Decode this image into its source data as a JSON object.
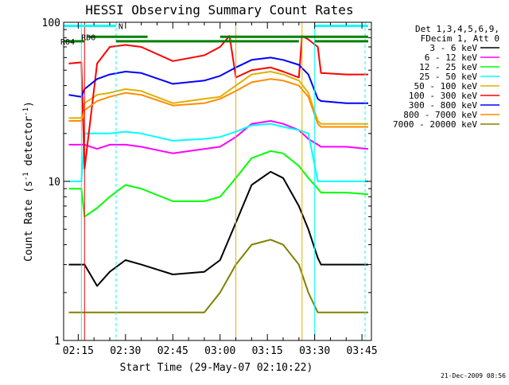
{
  "chart_data": {
    "type": "line",
    "title": "HESSI Observing Summary Count Rates",
    "xlabel": "Start Time (29-May-07 02:10:22)",
    "ylabel": "Count Rate (s",
    "ylabel_sup": "-1",
    "ylabel_tail": " detector",
    "ylabel_close": ")",
    "y_scale": "log",
    "ylim": [
      1,
      100
    ],
    "xlim": [
      "02:10:22",
      "03:48:00"
    ],
    "x_ticks": [
      "02:15",
      "02:30",
      "02:45",
      "03:00",
      "03:15",
      "03:30",
      "03:45"
    ],
    "y_ticks": [
      {
        "value": 1,
        "label": "1"
      },
      {
        "value": 10,
        "label": "10"
      },
      {
        "value": 100,
        "label": "100"
      }
    ],
    "y_minor_ticks": [
      2,
      3,
      4,
      5,
      6,
      7,
      8,
      9,
      20,
      30,
      40,
      50,
      60,
      70,
      80,
      90
    ],
    "legend_header": [
      "Det 1,3,4,5,6,9,",
      "FDecim 1, Att 0"
    ],
    "legend_position": "right",
    "timestamp": "21-Dec-2009 08:56",
    "series": [
      {
        "name": "3 - 6 keV",
        "color": "#000000",
        "points": [
          [
            "02:12",
            3.0
          ],
          [
            "02:16",
            3.0
          ],
          [
            "02:17",
            3.0
          ],
          [
            "02:21",
            2.2
          ],
          [
            "02:25",
            2.7
          ],
          [
            "02:30",
            3.2
          ],
          [
            "02:35",
            3.0
          ],
          [
            "02:45",
            2.6
          ],
          [
            "02:55",
            2.7
          ],
          [
            "03:00",
            3.2
          ],
          [
            "03:05",
            5.5
          ],
          [
            "03:10",
            9.5
          ],
          [
            "03:16",
            11.5
          ],
          [
            "03:20",
            10.5
          ],
          [
            "03:25",
            7.0
          ],
          [
            "03:28",
            5.0
          ],
          [
            "03:31",
            3.3
          ],
          [
            "03:32",
            3.0
          ],
          [
            "03:40",
            3.0
          ],
          [
            "03:47",
            3.0
          ]
        ]
      },
      {
        "name": "6 - 12 keV",
        "color": "#ff00ff",
        "points": [
          [
            "02:12",
            17.0
          ],
          [
            "02:16",
            17.0
          ],
          [
            "02:17",
            17.0
          ],
          [
            "02:21",
            16.0
          ],
          [
            "02:25",
            17.0
          ],
          [
            "02:30",
            17.0
          ],
          [
            "02:35",
            16.5
          ],
          [
            "02:45",
            15.0
          ],
          [
            "02:55",
            16.0
          ],
          [
            "03:00",
            16.5
          ],
          [
            "03:05",
            19.0
          ],
          [
            "03:10",
            23.0
          ],
          [
            "03:16",
            24.0
          ],
          [
            "03:20",
            23.0
          ],
          [
            "03:25",
            21.0
          ],
          [
            "03:28",
            18.5
          ],
          [
            "03:31",
            17.0
          ],
          [
            "03:32",
            16.5
          ],
          [
            "03:40",
            16.5
          ],
          [
            "03:47",
            16.0
          ]
        ]
      },
      {
        "name": "12 - 25 keV",
        "color": "#00ff00",
        "points": [
          [
            "02:12",
            9.0
          ],
          [
            "02:16",
            9.0
          ],
          [
            "02:17",
            6.0
          ],
          [
            "02:21",
            6.8
          ],
          [
            "02:25",
            8.0
          ],
          [
            "02:30",
            9.5
          ],
          [
            "02:35",
            9.0
          ],
          [
            "02:45",
            7.5
          ],
          [
            "02:55",
            7.5
          ],
          [
            "03:00",
            8.0
          ],
          [
            "03:05",
            10.5
          ],
          [
            "03:10",
            14.0
          ],
          [
            "03:16",
            15.5
          ],
          [
            "03:20",
            15.0
          ],
          [
            "03:25",
            12.5
          ],
          [
            "03:28",
            10.5
          ],
          [
            "03:31",
            9.0
          ],
          [
            "03:32",
            8.5
          ],
          [
            "03:40",
            8.5
          ],
          [
            "03:47",
            8.3
          ]
        ]
      },
      {
        "name": "25 - 50 keV",
        "color": "#00ffff",
        "points": [
          [
            "02:12",
            10.0
          ],
          [
            "02:16",
            10.0
          ],
          [
            "02:17",
            20.0
          ],
          [
            "02:21",
            20.0
          ],
          [
            "02:25",
            20.0
          ],
          [
            "02:30",
            20.5
          ],
          [
            "02:35",
            20.0
          ],
          [
            "02:45",
            18.0
          ],
          [
            "02:55",
            18.5
          ],
          [
            "03:00",
            19.0
          ],
          [
            "03:05",
            20.5
          ],
          [
            "03:10",
            22.5
          ],
          [
            "03:16",
            23.0
          ],
          [
            "03:20",
            22.0
          ],
          [
            "03:25",
            21.0
          ],
          [
            "03:28",
            20.0
          ],
          [
            "03:31",
            10.0
          ],
          [
            "03:32",
            10.0
          ],
          [
            "03:40",
            10.0
          ],
          [
            "03:47",
            10.0
          ]
        ]
      },
      {
        "name": "50 - 100 keV",
        "color": "#e0b000",
        "points": [
          [
            "02:12",
            25.0
          ],
          [
            "02:16",
            25.0
          ],
          [
            "02:17",
            31.0
          ],
          [
            "02:21",
            35.0
          ],
          [
            "02:25",
            36.0
          ],
          [
            "02:30",
            38.0
          ],
          [
            "02:35",
            37.0
          ],
          [
            "02:45",
            31.0
          ],
          [
            "02:55",
            33.0
          ],
          [
            "03:00",
            34.0
          ],
          [
            "03:05",
            40.0
          ],
          [
            "03:10",
            47.0
          ],
          [
            "03:16",
            49.0
          ],
          [
            "03:20",
            47.0
          ],
          [
            "03:25",
            43.0
          ],
          [
            "03:28",
            36.0
          ],
          [
            "03:31",
            24.0
          ],
          [
            "03:32",
            23.0
          ],
          [
            "03:40",
            23.0
          ],
          [
            "03:47",
            23.0
          ]
        ]
      },
      {
        "name": "100 - 300 keV",
        "color": "#ff0000",
        "points": [
          [
            "02:12",
            55.0
          ],
          [
            "02:16",
            56.0
          ],
          [
            "02:17",
            12.0
          ],
          [
            "02:21",
            55.0
          ],
          [
            "02:25",
            70.0
          ],
          [
            "02:30",
            72.0
          ],
          [
            "02:35",
            70.0
          ],
          [
            "02:45",
            57.0
          ],
          [
            "02:55",
            62.0
          ],
          [
            "03:00",
            70.0
          ],
          [
            "03:03",
            82.0
          ],
          [
            "03:05",
            45.0
          ],
          [
            "03:10",
            50.0
          ],
          [
            "03:16",
            52.0
          ],
          [
            "03:20",
            49.0
          ],
          [
            "03:25",
            45.0
          ],
          [
            "03:26",
            82.0
          ],
          [
            "03:28",
            78.0
          ],
          [
            "03:31",
            70.0
          ],
          [
            "03:32",
            48.0
          ],
          [
            "03:40",
            47.0
          ],
          [
            "03:47",
            47.0
          ]
        ]
      },
      {
        "name": "300 - 800 keV",
        "color": "#0000ff",
        "points": [
          [
            "02:12",
            35.0
          ],
          [
            "02:16",
            34.0
          ],
          [
            "02:17",
            38.0
          ],
          [
            "02:21",
            44.0
          ],
          [
            "02:25",
            47.0
          ],
          [
            "02:30",
            49.0
          ],
          [
            "02:35",
            48.0
          ],
          [
            "02:45",
            41.0
          ],
          [
            "02:55",
            43.0
          ],
          [
            "03:00",
            46.0
          ],
          [
            "03:05",
            52.0
          ],
          [
            "03:10",
            58.0
          ],
          [
            "03:16",
            60.0
          ],
          [
            "03:20",
            58.0
          ],
          [
            "03:25",
            54.0
          ],
          [
            "03:28",
            47.0
          ],
          [
            "03:31",
            33.0
          ],
          [
            "03:32",
            32.0
          ],
          [
            "03:40",
            31.0
          ],
          [
            "03:47",
            31.0
          ]
        ]
      },
      {
        "name": "800 - 7000 keV",
        "color": "#ff8c00",
        "points": [
          [
            "02:12",
            24.0
          ],
          [
            "02:16",
            24.0
          ],
          [
            "02:17",
            28.0
          ],
          [
            "02:21",
            32.0
          ],
          [
            "02:25",
            34.0
          ],
          [
            "02:30",
            36.0
          ],
          [
            "02:35",
            35.0
          ],
          [
            "02:45",
            30.0
          ],
          [
            "02:55",
            31.0
          ],
          [
            "03:00",
            33.0
          ],
          [
            "03:05",
            37.0
          ],
          [
            "03:10",
            42.0
          ],
          [
            "03:16",
            44.0
          ],
          [
            "03:20",
            43.0
          ],
          [
            "03:25",
            40.0
          ],
          [
            "03:28",
            34.0
          ],
          [
            "03:31",
            23.0
          ],
          [
            "03:32",
            22.0
          ],
          [
            "03:40",
            22.0
          ],
          [
            "03:47",
            22.0
          ]
        ]
      },
      {
        "name": "7000 - 20000 keV",
        "color": "#808000",
        "points": [
          [
            "02:12",
            1.5
          ],
          [
            "02:16",
            1.5
          ],
          [
            "02:17",
            1.5
          ],
          [
            "02:21",
            1.5
          ],
          [
            "02:25",
            1.5
          ],
          [
            "02:30",
            1.5
          ],
          [
            "02:35",
            1.5
          ],
          [
            "02:45",
            1.5
          ],
          [
            "02:55",
            1.5
          ],
          [
            "03:00",
            2.0
          ],
          [
            "03:05",
            3.0
          ],
          [
            "03:10",
            4.0
          ],
          [
            "03:16",
            4.3
          ],
          [
            "03:20",
            4.0
          ],
          [
            "03:25",
            3.0
          ],
          [
            "03:28",
            2.0
          ],
          [
            "03:31",
            1.5
          ],
          [
            "03:32",
            1.5
          ],
          [
            "03:40",
            1.5
          ],
          [
            "03:47",
            1.5
          ]
        ]
      }
    ],
    "vertical_markers": [
      {
        "time": "02:16",
        "color": "#00ffff",
        "style": "solid"
      },
      {
        "time": "02:17",
        "color": "#ff0000",
        "style": "solid"
      },
      {
        "time": "02:27",
        "color": "#00ffff",
        "style": "dashed"
      },
      {
        "time": "03:05",
        "color": "#e0b000",
        "style": "solid"
      },
      {
        "time": "03:26",
        "color": "#e0b000",
        "style": "solid"
      },
      {
        "time": "03:30",
        "color": "#00ffff",
        "style": "solid"
      },
      {
        "time": "03:46",
        "color": "#00ffff",
        "style": "dashed"
      }
    ],
    "top_bars": [
      {
        "label": "N",
        "color": "#00ffff",
        "y": 95,
        "segments": [
          [
            "02:10:22",
            "02:27"
          ],
          [
            "03:30",
            "03:47"
          ]
        ]
      },
      {
        "label": "RD0",
        "color": "#008000",
        "y": 81,
        "segments": [
          [
            "02:18",
            "02:37"
          ],
          [
            "03:00",
            "03:47"
          ]
        ]
      },
      {
        "label": "R04",
        "color": "#008000",
        "y": 76,
        "segments": [
          [
            "02:10:22",
            "02:17"
          ],
          [
            "02:27",
            "03:05"
          ],
          [
            "03:05",
            "03:25"
          ],
          [
            "03:30",
            "03:47"
          ]
        ]
      }
    ]
  }
}
